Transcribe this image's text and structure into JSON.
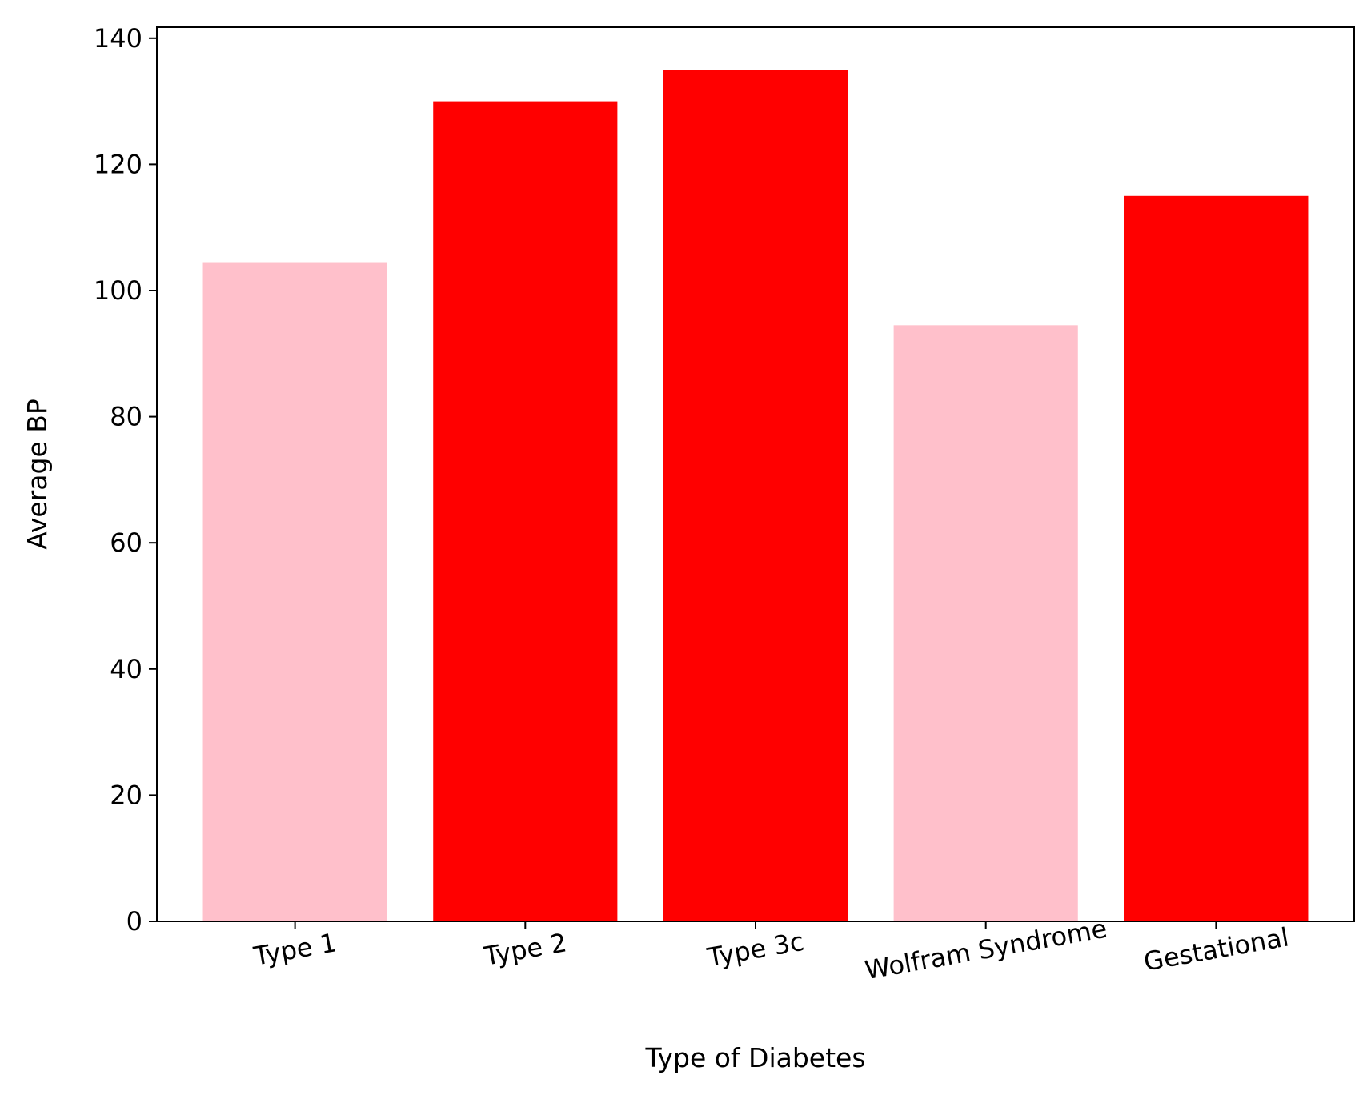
{
  "chart_data": {
    "type": "bar",
    "title": "",
    "xlabel": "Type of Diabetes",
    "ylabel": "Average BP",
    "categories": [
      "Type 1",
      "Type 2",
      "Type 3c",
      "Wolfram Syndrome",
      "Gestational"
    ],
    "values": [
      104.5,
      130,
      135,
      94.5,
      115
    ],
    "bar_colors": [
      "#FFC0CB",
      "#FF0000",
      "#FF0000",
      "#FFC0CB",
      "#FF0000"
    ],
    "ylim": [
      0,
      141.75
    ],
    "yticks": [
      0,
      20,
      40,
      60,
      80,
      100,
      120,
      140
    ],
    "x_tick_rotation_deg": -10,
    "grid": false,
    "legend": "none"
  }
}
